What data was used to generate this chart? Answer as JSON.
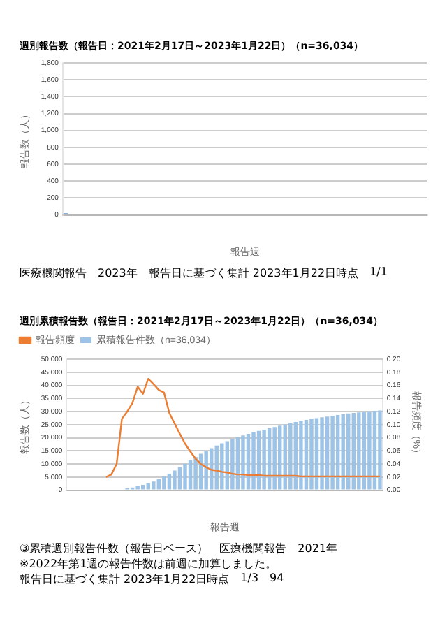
{
  "chart_data": [
    {
      "type": "bar",
      "title": "週別報告数（報告日：2021年2月17日～2023年1月22日）（n=36,034）",
      "ylabel": "報告数（人）",
      "xlabel": "報告週",
      "annotations": [
        "医療機関報告",
        "2023年",
        "報告日に基づく集計 2023年1月22日時点",
        "1/1"
      ],
      "categories": [
        null,
        null,
        null,
        null,
        null,
        null,
        null,
        null,
        null,
        null,
        null,
        null,
        null,
        null,
        null,
        null,
        null,
        null,
        null,
        null,
        null,
        null,
        null,
        null,
        null,
        null,
        null,
        null,
        null,
        null,
        null,
        null,
        null,
        null,
        null,
        null,
        null,
        null,
        null,
        null,
        null,
        null,
        null,
        null,
        null,
        null,
        null,
        null,
        null,
        null,
        null,
        null,
        null,
        null,
        null,
        null,
        null,
        null,
        null,
        null
      ],
      "series": [
        {
          "color": "#5b9bd5",
          "values": [
            20,
            null,
            null,
            null,
            null,
            null,
            null,
            null,
            null,
            null,
            null,
            null,
            null,
            null,
            null,
            null,
            null,
            null,
            null,
            null,
            null,
            null,
            null,
            null,
            null,
            null,
            null,
            null,
            null,
            null,
            null,
            null,
            null,
            null,
            null,
            null,
            null,
            null,
            null,
            null,
            null,
            null,
            null,
            null,
            null,
            null,
            null,
            null,
            null,
            null,
            null,
            null,
            null,
            null,
            null,
            null,
            null,
            null,
            null,
            null
          ]
        }
      ],
      "ylim": [
        0,
        1800
      ],
      "yticks": [
        0,
        {
          "value": 200,
          "label": "200"
        },
        {
          "value": 400,
          "label": "400"
        },
        {
          "value": 600,
          "label": "600"
        },
        {
          "value": 800,
          "label": "800"
        },
        {
          "value": 1000,
          "label": "1,000"
        },
        {
          "value": 1200,
          "label": "1,200"
        },
        {
          "value": 1400,
          "label": "1,400"
        },
        {
          "value": 1600,
          "label": "1,600"
        },
        {
          "value": 1800,
          "label": "1,800"
        }
      ],
      "grid": "y",
      "legend": false
    },
    {
      "type": "bar",
      "title": "週別累積報告数（報告日：2021年2月17日～2023年1月22日）（n=36,034）",
      "ylabel": "報告数（人）",
      "y2label": "報告頻度（%）",
      "xlabel": "報告週",
      "annotations": [
        "③累積週別報告件数（報告日ベース）",
        "医療機関報告",
        "2021年",
        "※2022年第1週の報告件数は前週に加算しました。",
        "報告日に基づく集計 2023年1月22日時点",
        "1/3",
        "94"
      ],
      "categories": [
        null,
        null,
        null,
        null,
        null,
        null,
        null,
        null,
        null,
        null,
        null,
        null,
        null,
        null,
        null,
        null,
        null,
        null,
        null,
        null,
        null,
        null,
        null,
        null,
        null,
        null,
        null,
        null,
        null,
        null,
        null,
        null,
        null,
        null,
        null,
        null,
        null,
        null,
        null,
        null,
        null,
        null,
        null,
        null,
        null,
        null,
        null,
        null,
        null,
        null,
        null,
        null,
        null,
        null,
        null,
        null,
        null,
        null,
        null,
        null
      ],
      "series": [
        {
          "name": "累積報告件数（n=36,034）",
          "type": "bar",
          "color": "#9dc3e6",
          "values": [
            0,
            0,
            0,
            0,
            0,
            0,
            0,
            0,
            null,
            null,
            null,
            700,
            1000,
            1500,
            2000,
            2600,
            3300,
            4200,
            5200,
            6300,
            7500,
            8800,
            10100,
            11400,
            12700,
            13900,
            15000,
            16000,
            17000,
            17900,
            18700,
            19500,
            20200,
            20900,
            21500,
            22100,
            22600,
            23100,
            23600,
            24100,
            24600,
            25100,
            25600,
            26000,
            26400,
            26800,
            27200,
            27500,
            27800,
            28100,
            28400,
            28700,
            29000,
            29300,
            29500,
            29700,
            29900,
            30100,
            30300,
            30400
          ]
        },
        {
          "name": "報告頻度",
          "type": "line",
          "axis": "y2",
          "color": "#ed7d31",
          "values": [
            null,
            null,
            null,
            null,
            null,
            null,
            null,
            0.02,
            0.024,
            0.04,
            0.109,
            0.12,
            0.133,
            0.158,
            0.147,
            0.17,
            0.162,
            0.153,
            0.149,
            0.118,
            0.102,
            0.086,
            0.071,
            0.059,
            0.048,
            0.04,
            0.035,
            0.031,
            0.03,
            0.028,
            0.027,
            0.025,
            0.024,
            0.024,
            0.023,
            0.023,
            0.023,
            0.022,
            0.022,
            0.022,
            0.022,
            0.022,
            0.022,
            0.022,
            0.021,
            0.021,
            0.021,
            0.021,
            0.021,
            0.021,
            0.021,
            0.021,
            0.021,
            0.021,
            0.021,
            0.021,
            0.021,
            0.021,
            0.021,
            0.021
          ]
        }
      ],
      "ylim": [
        0,
        50000
      ],
      "yticks": [
        0,
        {
          "value": 5000,
          "label": "5,000"
        },
        {
          "value": 10000,
          "label": "10,000"
        },
        {
          "value": 15000,
          "label": "15,000"
        },
        {
          "value": 20000,
          "label": "20,000"
        },
        {
          "value": 25000,
          "label": "25,000"
        },
        {
          "value": 30000,
          "label": "30,000"
        },
        {
          "value": 35000,
          "label": "35,000"
        },
        {
          "value": 40000,
          "label": "40,000"
        },
        {
          "value": 45000,
          "label": "45,000"
        },
        {
          "value": 50000,
          "label": "50,000"
        }
      ],
      "y2lim": [
        0,
        0.2
      ],
      "y2ticks": [
        {
          "value": 0,
          "label": "0.00"
        },
        {
          "value": 0.02,
          "label": "0.02"
        },
        {
          "value": 0.04,
          "label": "0.04"
        },
        {
          "value": 0.06,
          "label": "0.06"
        },
        {
          "value": 0.08,
          "label": "0.08"
        },
        {
          "value": 0.1,
          "label": "0.10"
        },
        {
          "value": 0.12,
          "label": "0.12"
        },
        {
          "value": 0.14,
          "label": "0.14"
        },
        {
          "value": 0.16,
          "label": "0.16"
        },
        {
          "value": 0.18,
          "label": "0.18"
        },
        {
          "value": 0.2,
          "label": "0.20"
        }
      ],
      "grid": "y",
      "legend": "top left",
      "marker": "none"
    }
  ]
}
